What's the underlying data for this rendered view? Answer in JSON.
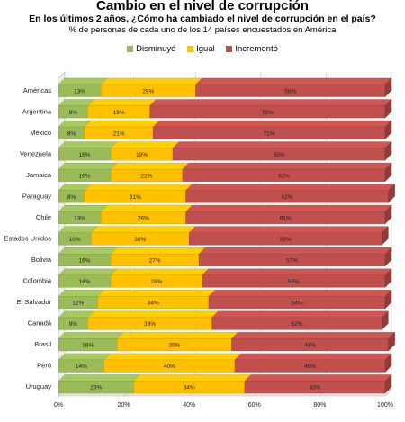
{
  "chart_data": {
    "type": "bar",
    "orientation": "horizontal",
    "stacked": true,
    "title": "Cambio en el nivel de corrupción",
    "subtitle": "En los últimos 2 años, ¿Cómo ha cambiado el nivel de corrupción en el país?",
    "note": "% de personas de cada uno de los 14 países encuestados en América",
    "categories": [
      "Américas",
      "Argentina",
      "México",
      "Venezuela",
      "Jamaica",
      "Paraguay",
      "Chile",
      "Estados Unidos",
      "Bolivia",
      "Colombia",
      "El Salvador",
      "Canadá",
      "Brasil",
      "Perú",
      "Uruguay"
    ],
    "series": [
      {
        "name": "Disminuyó",
        "color": "#9bbb59",
        "values": [
          13,
          9,
          8,
          16,
          16,
          8,
          13,
          10,
          16,
          16,
          12,
          9,
          18,
          14,
          23
        ]
      },
      {
        "name": "Igual",
        "color": "#ffc000",
        "values": [
          29,
          19,
          21,
          19,
          22,
          31,
          26,
          30,
          27,
          28,
          34,
          38,
          35,
          40,
          34
        ]
      },
      {
        "name": "Incrementó",
        "color": "#c0504d",
        "values": [
          58,
          72,
          71,
          65,
          62,
          62,
          61,
          59,
          57,
          56,
          54,
          52,
          48,
          46,
          43
        ]
      }
    ],
    "xlim": [
      0,
      100
    ],
    "xticks": [
      "0%",
      "20%",
      "40%",
      "60%",
      "80%",
      "100%"
    ],
    "legend_position": "top",
    "grid": true
  }
}
